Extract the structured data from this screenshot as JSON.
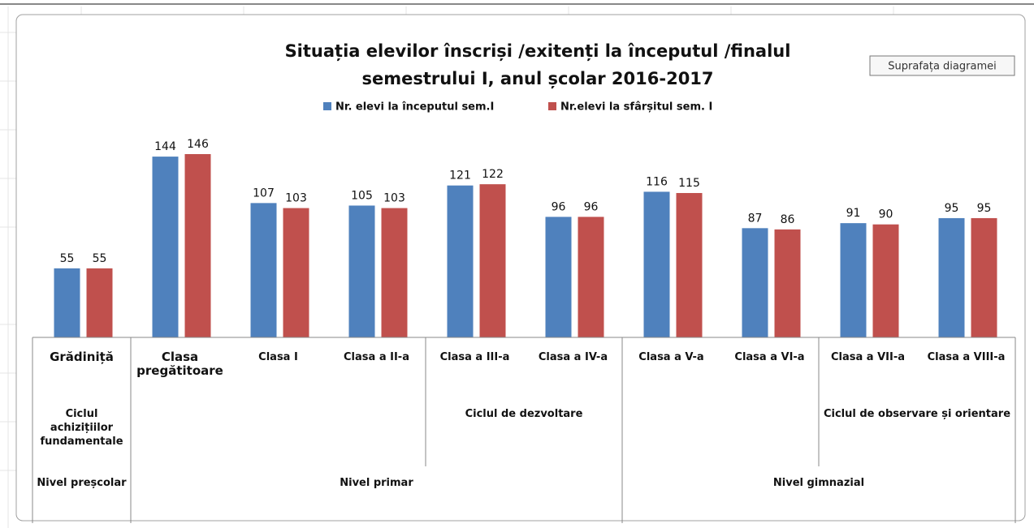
{
  "chart_data": {
    "type": "bar",
    "title_lines": [
      "Situația elevilor înscriși /exitenți la începutul /finalul",
      "semestrului I, anul școlar 2016-2017"
    ],
    "tooltip": "Suprafața diagramei",
    "categories": [
      "Grădiniță",
      "Clasa pregătitoare",
      "Clasa I",
      "Clasa a II-a",
      "Clasa a III-a",
      "Clasa a IV-a",
      "Clasa a V-a",
      "Clasa a VI-a",
      "Clasa a VII-a",
      "Clasa a VIII-a"
    ],
    "group_levels": [
      [
        {
          "label": "Ciclul achizițiilor fundamentale",
          "count": 1
        },
        {
          "label": null,
          "count": 3
        },
        {
          "label": "Ciclul de dezvoltare",
          "count": 2
        },
        {
          "label": null,
          "count": 2
        },
        {
          "label": "Ciclul de observare și orientare",
          "count": 2
        }
      ],
      [
        {
          "label": "Nivel preșcolar",
          "count": 1
        },
        {
          "label": "Nivel primar",
          "count": 5
        },
        {
          "label": "Nivel gimnazial",
          "count": 4
        }
      ]
    ],
    "series": [
      {
        "name": "Nr. elevi la începutul sem.I",
        "color": "#4f81bd",
        "values": [
          55,
          144,
          107,
          105,
          121,
          96,
          116,
          87,
          91,
          95
        ]
      },
      {
        "name": "Nr.elevi la sfârșitul sem. I",
        "color": "#c0504d",
        "values": [
          55,
          146,
          103,
          103,
          122,
          96,
          115,
          86,
          90,
          95
        ]
      }
    ]
  }
}
